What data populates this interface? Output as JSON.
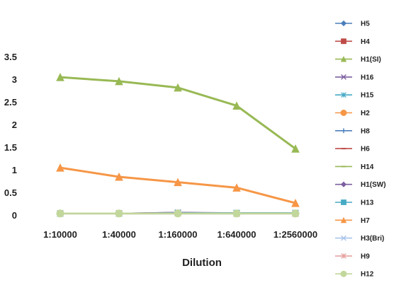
{
  "chart_data": {
    "type": "line",
    "title": "",
    "xlabel": "Dilution",
    "ylabel": "",
    "categories": [
      "1:10000",
      "1:40000",
      "1:160000",
      "1:640000",
      "1:2560000"
    ],
    "ylim": [
      0,
      3.5
    ],
    "yticks": [
      0,
      0.5,
      1,
      1.5,
      2,
      2.5,
      3,
      3.5
    ],
    "ytick_labels": [
      "0",
      "0.5",
      "1",
      "1.5",
      "2",
      "2.5",
      "3",
      "3.5"
    ],
    "grid": false,
    "legend_position": "right",
    "series": [
      {
        "name": "H5",
        "color": "#4a7ebb",
        "marker": "diamond",
        "values": [
          0.05,
          0.05,
          0.06,
          0.05,
          0.05
        ]
      },
      {
        "name": "H4",
        "color": "#be4b48",
        "marker": "square",
        "values": [
          0.05,
          0.05,
          0.06,
          0.05,
          0.05
        ]
      },
      {
        "name": "H1(SI)",
        "color": "#98b954",
        "marker": "triangle",
        "values": [
          3.06,
          2.97,
          2.83,
          2.43,
          1.48
        ]
      },
      {
        "name": "H16",
        "color": "#7d60a0",
        "marker": "x",
        "values": [
          0.05,
          0.05,
          0.07,
          0.06,
          0.06
        ]
      },
      {
        "name": "H15",
        "color": "#46aac5",
        "marker": "star",
        "values": [
          0.05,
          0.05,
          0.06,
          0.05,
          0.05
        ]
      },
      {
        "name": "H2",
        "color": "#f69646",
        "marker": "circle",
        "values": [
          0.05,
          0.05,
          0.06,
          0.05,
          0.05
        ]
      },
      {
        "name": "H8",
        "color": "#4a7ebb",
        "marker": "plus",
        "values": [
          0.05,
          0.05,
          0.05,
          0.05,
          0.05
        ]
      },
      {
        "name": "H6",
        "color": "#be4b48",
        "marker": "dash",
        "values": [
          0.05,
          0.05,
          0.05,
          0.05,
          0.05
        ]
      },
      {
        "name": "H14",
        "color": "#98b954",
        "marker": "dash",
        "values": [
          0.05,
          0.05,
          0.05,
          0.05,
          0.05
        ]
      },
      {
        "name": "H1(SW)",
        "color": "#7d60a0",
        "marker": "diamond",
        "values": [
          0.05,
          0.05,
          0.07,
          0.05,
          0.05
        ]
      },
      {
        "name": "H13",
        "color": "#46aac5",
        "marker": "square",
        "values": [
          0.05,
          0.05,
          0.06,
          0.06,
          0.06
        ]
      },
      {
        "name": "H7",
        "color": "#f69646",
        "marker": "triangle",
        "values": [
          1.06,
          0.86,
          0.74,
          0.62,
          0.28
        ]
      },
      {
        "name": "H3(Bri)",
        "color": "#a9c4eb",
        "marker": "x",
        "values": [
          0.05,
          0.05,
          0.05,
          0.05,
          0.05
        ]
      },
      {
        "name": "H9",
        "color": "#e6a3a2",
        "marker": "star",
        "values": [
          0.05,
          0.05,
          0.05,
          0.05,
          0.05
        ]
      },
      {
        "name": "H12",
        "color": "#c2d79b",
        "marker": "circle",
        "values": [
          0.05,
          0.05,
          0.05,
          0.05,
          0.05
        ]
      }
    ]
  }
}
